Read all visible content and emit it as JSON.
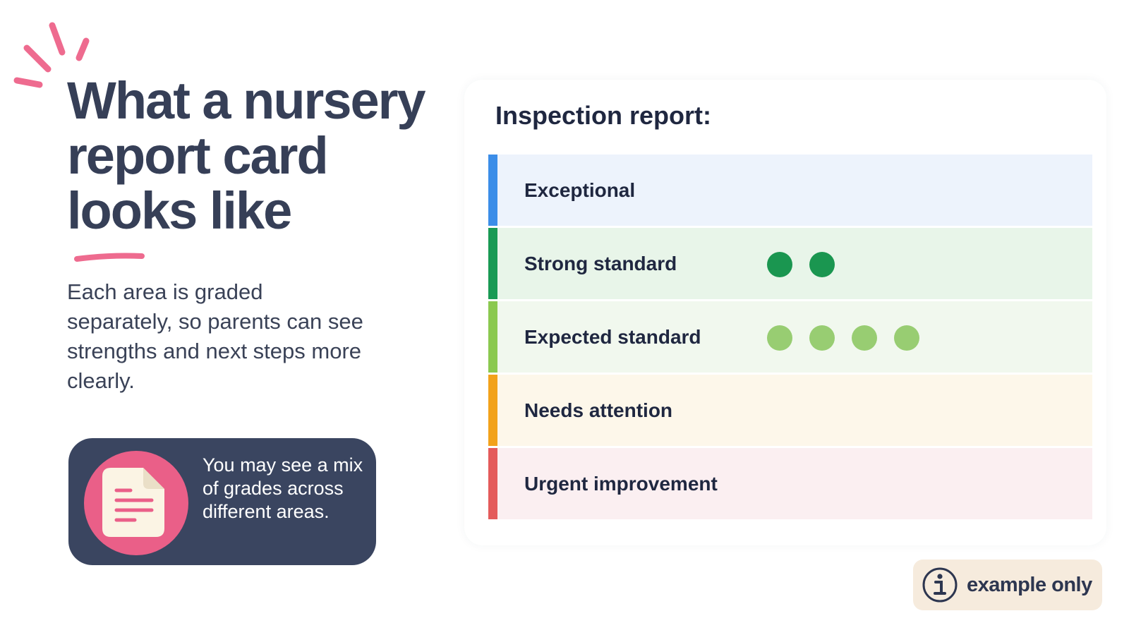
{
  "header": {
    "title": "What a nursery report card looks like",
    "subtitle": "Each area is graded separately, so parents can see strengths and next steps more clearly."
  },
  "note": {
    "text": "You may see a mix of grades across different areas.",
    "icon": "document-icon"
  },
  "report": {
    "title": "Inspection report:",
    "rows": [
      {
        "label": "Exceptional",
        "bar_color": "#3b8de8",
        "bg_color": "#edf3fc",
        "dot_color": "#1a9650",
        "count": 0
      },
      {
        "label": "Strong standard",
        "bar_color": "#199a54",
        "bg_color": "#e8f5e9",
        "dot_color": "#1a9650",
        "count": 2
      },
      {
        "label": "Expected standard",
        "bar_color": "#8bc94f",
        "bg_color": "#f1f8ee",
        "dot_color": "#98cd72",
        "count": 4
      },
      {
        "label": "Needs attention",
        "bar_color": "#f2a21b",
        "bg_color": "#fdf7ea",
        "dot_color": "#f2a21b",
        "count": 0
      },
      {
        "label": "Urgent improvement",
        "bar_color": "#e45b5b",
        "bg_color": "#fbeff1",
        "dot_color": "#e45b5b",
        "count": 0
      }
    ]
  },
  "badge": {
    "label": "example only",
    "icon": "info-icon"
  },
  "colors": {
    "accent_pink": "#ea5f88",
    "navy": "#3a4560",
    "text_dark": "#363f57"
  }
}
